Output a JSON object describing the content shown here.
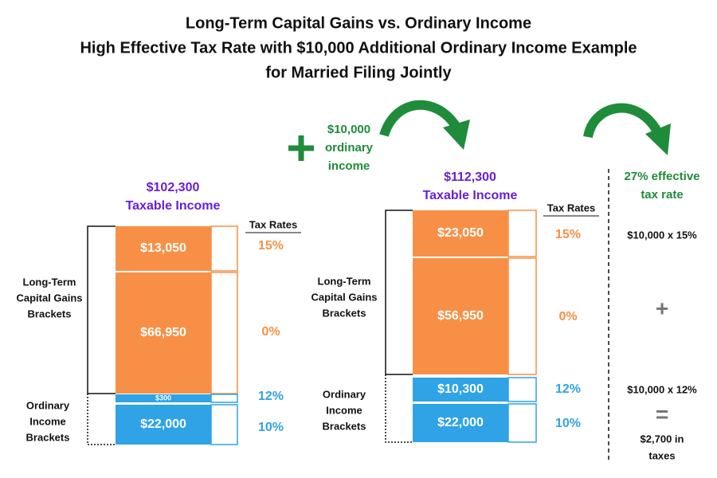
{
  "title": [
    "Long-Term Capital Gains vs. Ordinary Income",
    "High Effective Tax Rate with $10,000 Additional Ordinary Income Example",
    "for Married Filing Jointly"
  ],
  "left": {
    "total": [
      "$102,300",
      "Taxable Income"
    ],
    "rates_header": "Tax Rates",
    "ltcg_label": [
      "Long-Term",
      "Capital Gains",
      "Brackets"
    ],
    "ordinary_label": [
      "Ordinary",
      "Income",
      "Brackets"
    ],
    "segments": [
      {
        "label": "$13,050",
        "rate": "15%"
      },
      {
        "label": "$66,950",
        "rate": "0%"
      },
      {
        "label": "$300",
        "rate": "12%"
      },
      {
        "label": "$22,000",
        "rate": "10%"
      }
    ]
  },
  "addition": [
    "$10,000",
    "ordinary",
    "income"
  ],
  "right": {
    "total": [
      "$112,300",
      "Taxable Income"
    ],
    "rates_header": "Tax Rates",
    "ltcg_label": [
      "Long-Term",
      "Capital Gains",
      "Brackets"
    ],
    "ordinary_label": [
      "Ordinary",
      "Income",
      "Brackets"
    ],
    "segments": [
      {
        "label": "$23,050",
        "rate": "15%"
      },
      {
        "label": "$56,950",
        "rate": "0%"
      },
      {
        "label": "$10,300",
        "rate": "12%"
      },
      {
        "label": "$22,000",
        "rate": "10%"
      }
    ]
  },
  "effective": {
    "title": [
      "27% effective",
      "tax rate"
    ],
    "line1": "$10,000 x 15%",
    "plus": "+",
    "line2": "$10,000 x 12%",
    "equals": "=",
    "result": [
      "$2,700 in",
      "taxes"
    ]
  }
}
